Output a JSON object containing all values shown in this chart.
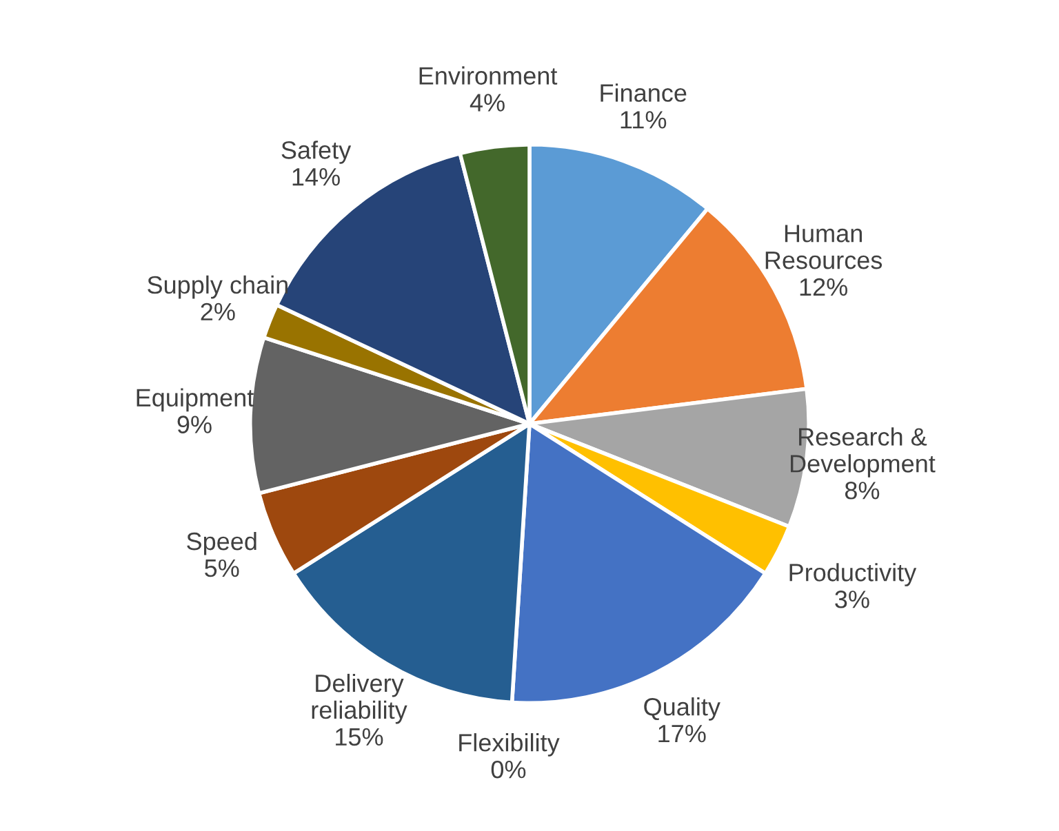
{
  "chart_data": {
    "type": "pie",
    "categories": [
      "Finance",
      "Human\nResources",
      "Research &\nDevelopment",
      "Productivity",
      "Quality",
      "Flexibility",
      "Delivery\nreliability",
      "Speed",
      "Equipment",
      "Supply chain",
      "Safety",
      "Environment"
    ],
    "values": [
      11,
      12,
      8,
      3,
      17,
      0,
      15,
      5,
      9,
      2,
      14,
      4
    ],
    "value_labels": [
      "11%",
      "12%",
      "8%",
      "3%",
      "17%",
      "0%",
      "15%",
      "5%",
      "9%",
      "2%",
      "14%",
      "4%"
    ],
    "colors": [
      "#5b9bd5",
      "#ed7d31",
      "#a5a5a5",
      "#ffc000",
      "#4472c4",
      "#70ad47",
      "#255e91",
      "#9e480e",
      "#636363",
      "#997300",
      "#264478",
      "#43682b"
    ],
    "legend": false
  }
}
